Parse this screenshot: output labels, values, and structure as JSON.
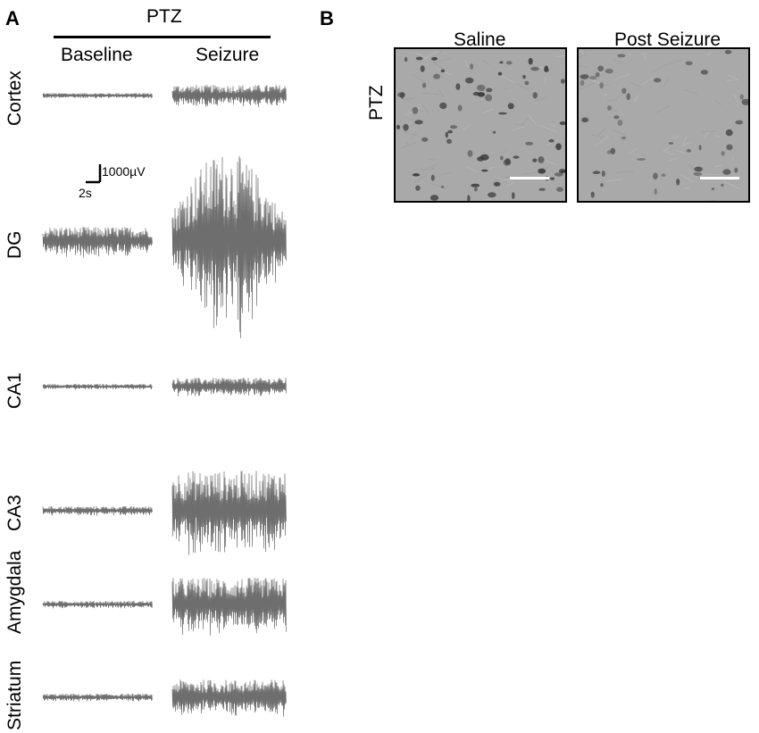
{
  "panel_a": {
    "letter": "A",
    "treatment": "PTZ",
    "conditions": [
      "Baseline",
      "Seizure"
    ],
    "regions": [
      "Cortex",
      "DG",
      "CA1",
      "CA3",
      "Amygdala",
      "Striatum"
    ],
    "scale": {
      "amplitude": "1000µV",
      "time": "2s"
    },
    "traces": [
      {
        "region": "Cortex",
        "baseline_amp": 0.03,
        "seizure_amp": 0.12
      },
      {
        "region": "DG",
        "baseline_amp": 0.16,
        "seizure_amp": 1.0
      },
      {
        "region": "CA1",
        "baseline_amp": 0.03,
        "seizure_amp": 0.1
      },
      {
        "region": "CA3",
        "baseline_amp": 0.05,
        "seizure_amp": 0.45
      },
      {
        "region": "Amygdala",
        "baseline_amp": 0.04,
        "seizure_amp": 0.3
      },
      {
        "region": "Striatum",
        "baseline_amp": 0.04,
        "seizure_amp": 0.2
      }
    ]
  },
  "panel_b": {
    "letter": "B",
    "treatment": "PTZ",
    "columns": [
      "Saline",
      "Post Seizure"
    ]
  },
  "colors": {
    "trace": "#6e6e6e",
    "tissue": "#a9a9a9",
    "cell": "#3c3c3c"
  }
}
